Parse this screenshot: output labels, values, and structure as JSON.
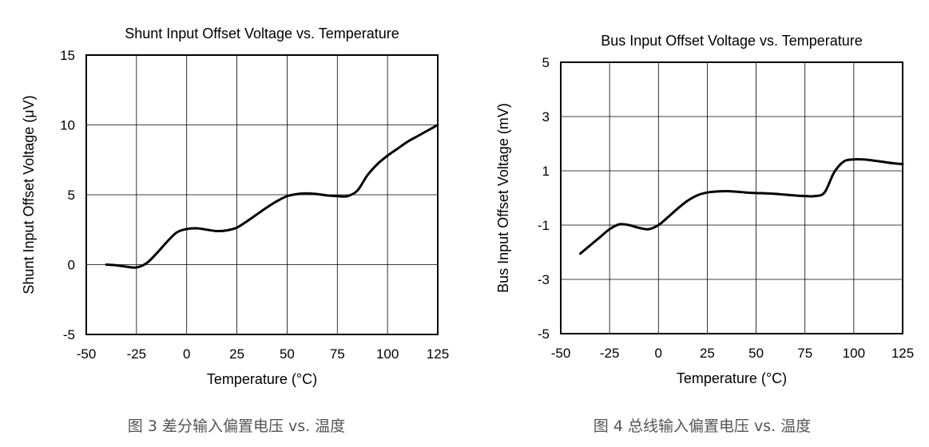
{
  "chart_data": [
    {
      "type": "line",
      "title": "Shunt Input Offset Voltage vs. Temperature",
      "xlabel": "Temperature (°C)",
      "ylabel": "Shunt Input Offset Voltage (μV)",
      "xlim": [
        -50,
        125
      ],
      "ylim": [
        -5,
        15
      ],
      "xticks": [
        -50,
        -25,
        0,
        25,
        50,
        75,
        100,
        125
      ],
      "yticks": [
        -5,
        0,
        5,
        10,
        15
      ],
      "grid": true,
      "caption": "图 3 差分输入偏置电压 vs. 温度",
      "series": [
        {
          "x": [
            -40,
            -35,
            -30,
            -25,
            -20,
            -15,
            -10,
            -5,
            0,
            5,
            10,
            15,
            20,
            25,
            30,
            35,
            40,
            45,
            50,
            55,
            60,
            65,
            70,
            75,
            80,
            85,
            90,
            95,
            100,
            105,
            110,
            115,
            120,
            125
          ],
          "y": [
            0,
            -0.05,
            -0.15,
            -0.2,
            0.1,
            0.8,
            1.6,
            2.3,
            2.55,
            2.6,
            2.5,
            2.4,
            2.45,
            2.65,
            3.1,
            3.6,
            4.1,
            4.55,
            4.9,
            5.05,
            5.1,
            5.05,
            4.95,
            4.9,
            4.9,
            5.3,
            6.4,
            7.2,
            7.8,
            8.3,
            8.8,
            9.2,
            9.6,
            10.0
          ]
        }
      ]
    },
    {
      "type": "line",
      "title": "Bus Input Offset Voltage vs. Temperature",
      "xlabel": "Temperature (°C)",
      "ylabel": "Bus Input Offset Voltage (mV)",
      "xlim": [
        -50,
        125
      ],
      "ylim": [
        -5,
        5
      ],
      "xticks": [
        -50,
        -25,
        0,
        25,
        50,
        75,
        100,
        125
      ],
      "yticks": [
        -5,
        -3,
        -1,
        1,
        3,
        5
      ],
      "grid": true,
      "caption": "图 4 总线输入偏置电压 vs. 温度",
      "series": [
        {
          "x": [
            -40,
            -35,
            -30,
            -25,
            -20,
            -15,
            -10,
            -5,
            0,
            5,
            10,
            15,
            20,
            25,
            30,
            35,
            40,
            45,
            50,
            55,
            60,
            65,
            70,
            75,
            80,
            85,
            90,
            95,
            100,
            105,
            110,
            115,
            120,
            125
          ],
          "y": [
            -2.05,
            -1.75,
            -1.45,
            -1.15,
            -0.97,
            -1.0,
            -1.1,
            -1.15,
            -1.0,
            -0.7,
            -0.38,
            -0.1,
            0.1,
            0.2,
            0.24,
            0.25,
            0.23,
            0.2,
            0.18,
            0.17,
            0.15,
            0.12,
            0.09,
            0.07,
            0.07,
            0.2,
            0.95,
            1.35,
            1.42,
            1.42,
            1.38,
            1.33,
            1.28,
            1.25
          ]
        }
      ]
    }
  ]
}
